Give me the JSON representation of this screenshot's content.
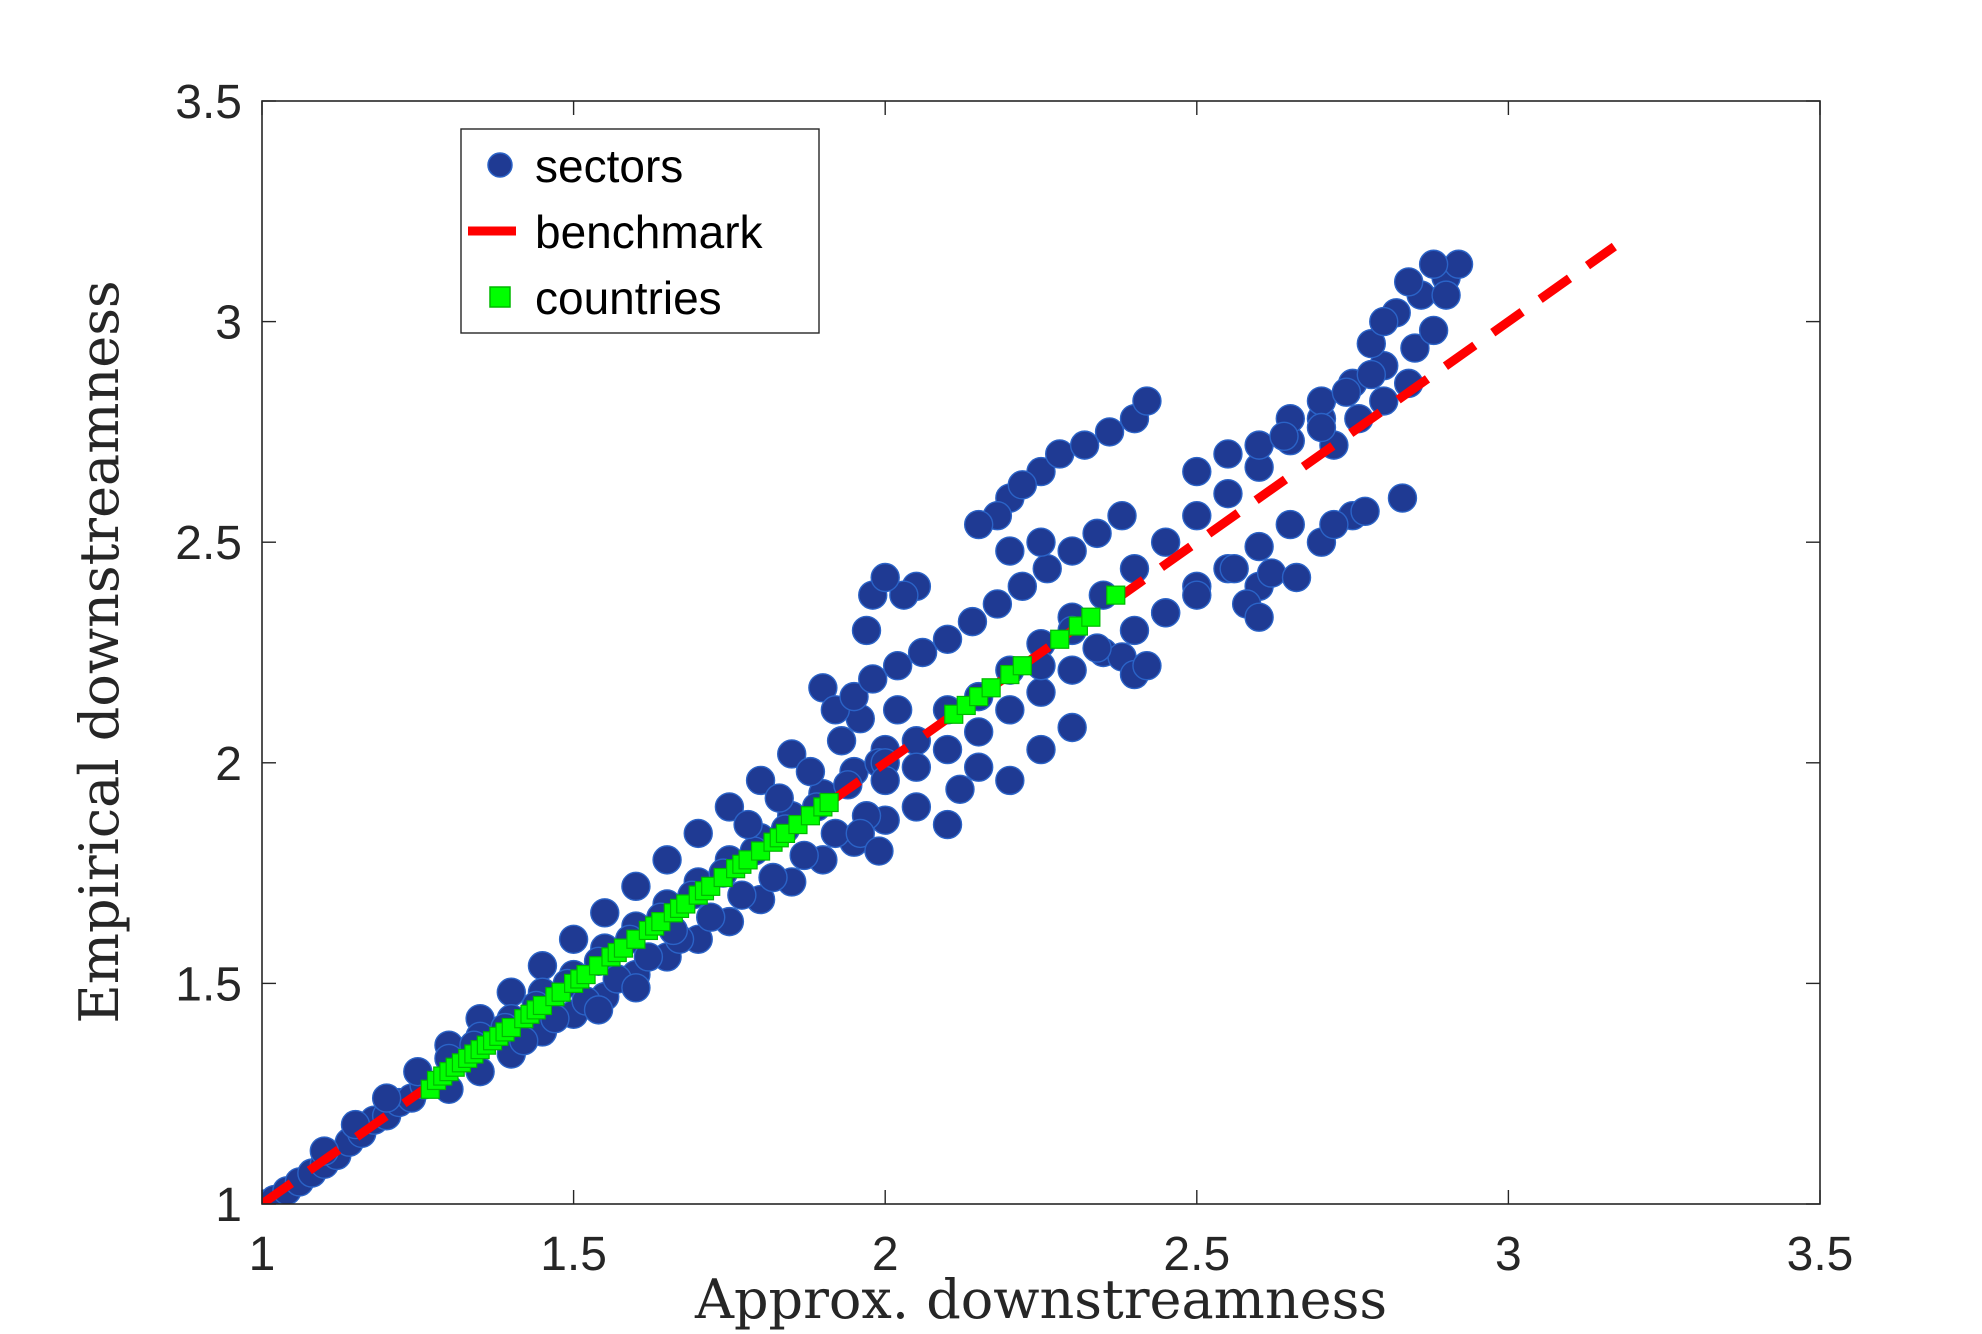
{
  "chart_data": {
    "type": "scatter",
    "title": "",
    "xlabel": "Approx. downstreamness",
    "ylabel": "Empirical downstreamness",
    "xlim": [
      1,
      3.5
    ],
    "ylim": [
      1,
      3.5
    ],
    "xticks": [
      1,
      1.5,
      2,
      2.5,
      3,
      3.5
    ],
    "yticks": [
      1,
      1.5,
      2,
      2.5,
      3,
      3.5
    ],
    "xtick_labels": [
      "1",
      "1.5",
      "2",
      "2.5",
      "3",
      "3.5"
    ],
    "ytick_labels": [
      "1",
      "1.5",
      "2",
      "2.5",
      "3",
      "3.5"
    ],
    "grid": false,
    "legend_position": "top-left",
    "series": [
      {
        "name": "sectors",
        "kind": "scatter",
        "marker": "circle",
        "color": "#1f3a93",
        "edge_color": "#2b63c7",
        "points": [
          [
            1.0,
            1.0
          ],
          [
            1.02,
            1.01
          ],
          [
            1.04,
            1.03
          ],
          [
            1.06,
            1.05
          ],
          [
            1.08,
            1.07
          ],
          [
            1.1,
            1.09
          ],
          [
            1.12,
            1.11
          ],
          [
            1.14,
            1.14
          ],
          [
            1.16,
            1.16
          ],
          [
            1.18,
            1.19
          ],
          [
            1.2,
            1.2
          ],
          [
            1.22,
            1.23
          ],
          [
            1.24,
            1.24
          ],
          [
            1.26,
            1.27
          ],
          [
            1.1,
            1.12
          ],
          [
            1.15,
            1.18
          ],
          [
            1.2,
            1.24
          ],
          [
            1.25,
            1.3
          ],
          [
            1.3,
            1.36
          ],
          [
            1.35,
            1.42
          ],
          [
            1.4,
            1.48
          ],
          [
            1.45,
            1.54
          ],
          [
            1.5,
            1.6
          ],
          [
            1.55,
            1.66
          ],
          [
            1.6,
            1.72
          ],
          [
            1.65,
            1.78
          ],
          [
            1.7,
            1.84
          ],
          [
            1.75,
            1.9
          ],
          [
            1.8,
            1.96
          ],
          [
            1.85,
            2.02
          ],
          [
            1.3,
            1.26
          ],
          [
            1.35,
            1.3
          ],
          [
            1.4,
            1.34
          ],
          [
            1.45,
            1.39
          ],
          [
            1.5,
            1.43
          ],
          [
            1.55,
            1.47
          ],
          [
            1.6,
            1.52
          ],
          [
            1.65,
            1.56
          ],
          [
            1.7,
            1.6
          ],
          [
            1.75,
            1.64
          ],
          [
            1.8,
            1.69
          ],
          [
            1.85,
            1.73
          ],
          [
            1.9,
            1.78
          ],
          [
            1.95,
            1.82
          ],
          [
            2.0,
            1.87
          ],
          [
            1.3,
            1.33
          ],
          [
            1.35,
            1.38
          ],
          [
            1.4,
            1.42
          ],
          [
            1.45,
            1.48
          ],
          [
            1.5,
            1.52
          ],
          [
            1.55,
            1.58
          ],
          [
            1.6,
            1.63
          ],
          [
            1.65,
            1.68
          ],
          [
            1.7,
            1.73
          ],
          [
            1.75,
            1.78
          ],
          [
            1.8,
            1.83
          ],
          [
            1.85,
            1.88
          ],
          [
            1.9,
            1.93
          ],
          [
            1.95,
            1.98
          ],
          [
            2.0,
            2.03
          ],
          [
            1.34,
            1.36
          ],
          [
            1.39,
            1.4
          ],
          [
            1.44,
            1.45
          ],
          [
            1.49,
            1.5
          ],
          [
            1.54,
            1.55
          ],
          [
            1.59,
            1.6
          ],
          [
            1.64,
            1.65
          ],
          [
            1.69,
            1.7
          ],
          [
            1.74,
            1.75
          ],
          [
            1.79,
            1.8
          ],
          [
            1.84,
            1.85
          ],
          [
            1.89,
            1.9
          ],
          [
            1.94,
            1.95
          ],
          [
            1.99,
            2.0
          ],
          [
            1.42,
            1.37
          ],
          [
            1.47,
            1.42
          ],
          [
            1.52,
            1.46
          ],
          [
            1.57,
            1.51
          ],
          [
            1.62,
            1.56
          ],
          [
            1.67,
            1.6
          ],
          [
            1.72,
            1.65
          ],
          [
            1.77,
            1.7
          ],
          [
            1.82,
            1.74
          ],
          [
            1.87,
            1.79
          ],
          [
            1.92,
            1.84
          ],
          [
            1.97,
            1.88
          ],
          [
            1.6,
            1.49
          ],
          [
            1.54,
            1.44
          ],
          [
            1.66,
            1.62
          ],
          [
            1.78,
            1.86
          ],
          [
            1.83,
            1.92
          ],
          [
            1.88,
            1.98
          ],
          [
            1.93,
            2.05
          ],
          [
            1.96,
            2.1
          ],
          [
            2.02,
            2.12
          ],
          [
            1.9,
            2.17
          ],
          [
            1.92,
            2.12
          ],
          [
            1.95,
            2.15
          ],
          [
            1.98,
            2.19
          ],
          [
            2.02,
            2.22
          ],
          [
            2.06,
            2.25
          ],
          [
            2.1,
            2.28
          ],
          [
            2.14,
            2.32
          ],
          [
            2.18,
            2.36
          ],
          [
            2.22,
            2.4
          ],
          [
            2.26,
            2.44
          ],
          [
            2.3,
            2.48
          ],
          [
            2.34,
            2.52
          ],
          [
            2.38,
            2.56
          ],
          [
            2.0,
            2.0
          ],
          [
            2.05,
            2.05
          ],
          [
            2.1,
            2.12
          ],
          [
            2.15,
            2.15
          ],
          [
            2.2,
            2.21
          ],
          [
            2.25,
            2.27
          ],
          [
            2.3,
            2.33
          ],
          [
            2.35,
            2.38
          ],
          [
            2.4,
            2.44
          ],
          [
            2.45,
            2.5
          ],
          [
            2.5,
            2.56
          ],
          [
            2.55,
            2.61
          ],
          [
            2.6,
            2.67
          ],
          [
            2.65,
            2.73
          ],
          [
            2.7,
            2.78
          ],
          [
            2.0,
            1.96
          ],
          [
            2.05,
            1.99
          ],
          [
            2.1,
            2.03
          ],
          [
            2.15,
            2.07
          ],
          [
            2.2,
            2.12
          ],
          [
            2.25,
            2.16
          ],
          [
            2.3,
            2.21
          ],
          [
            2.35,
            2.25
          ],
          [
            2.4,
            2.3
          ],
          [
            2.45,
            2.34
          ],
          [
            2.5,
            2.4
          ],
          [
            2.55,
            2.44
          ],
          [
            2.6,
            2.49
          ],
          [
            2.65,
            2.54
          ],
          [
            2.05,
            1.9
          ],
          [
            2.1,
            1.86
          ],
          [
            2.15,
            1.99
          ],
          [
            2.2,
            1.96
          ],
          [
            2.25,
            2.03
          ],
          [
            2.3,
            2.08
          ],
          [
            1.96,
            1.84
          ],
          [
            1.99,
            1.8
          ],
          [
            2.12,
            1.94
          ],
          [
            2.5,
            2.66
          ],
          [
            2.55,
            2.7
          ],
          [
            2.6,
            2.72
          ],
          [
            2.65,
            2.78
          ],
          [
            2.7,
            2.82
          ],
          [
            2.75,
            2.86
          ],
          [
            2.8,
            2.9
          ],
          [
            2.85,
            2.94
          ],
          [
            2.88,
            2.98
          ],
          [
            2.78,
            2.95
          ],
          [
            2.82,
            3.02
          ],
          [
            2.86,
            3.06
          ],
          [
            2.9,
            3.1
          ],
          [
            2.92,
            3.13
          ],
          [
            2.88,
            3.13
          ],
          [
            2.84,
            3.09
          ],
          [
            2.9,
            3.06
          ],
          [
            2.8,
            3.0
          ],
          [
            2.72,
            2.72
          ],
          [
            2.76,
            2.78
          ],
          [
            2.8,
            2.82
          ],
          [
            2.84,
            2.86
          ],
          [
            2.74,
            2.84
          ],
          [
            2.78,
            2.88
          ],
          [
            2.7,
            2.76
          ],
          [
            2.64,
            2.74
          ],
          [
            2.2,
            2.6
          ],
          [
            2.25,
            2.66
          ],
          [
            2.28,
            2.7
          ],
          [
            2.32,
            2.72
          ],
          [
            2.36,
            2.75
          ],
          [
            2.4,
            2.78
          ],
          [
            2.42,
            2.82
          ],
          [
            2.18,
            2.56
          ],
          [
            2.22,
            2.63
          ],
          [
            2.05,
            2.4
          ],
          [
            2.03,
            2.38
          ],
          [
            1.98,
            2.38
          ],
          [
            2.0,
            2.42
          ],
          [
            1.97,
            2.3
          ],
          [
            2.15,
            2.54
          ],
          [
            2.2,
            2.48
          ],
          [
            2.25,
            2.5
          ],
          [
            2.6,
            2.4
          ],
          [
            2.62,
            2.43
          ],
          [
            2.66,
            2.42
          ],
          [
            2.56,
            2.44
          ],
          [
            2.58,
            2.36
          ],
          [
            2.6,
            2.33
          ],
          [
            2.7,
            2.5
          ],
          [
            2.75,
            2.56
          ],
          [
            2.77,
            2.57
          ],
          [
            2.83,
            2.6
          ],
          [
            2.72,
            2.54
          ],
          [
            2.38,
            2.24
          ],
          [
            2.4,
            2.2
          ],
          [
            2.42,
            2.22
          ],
          [
            2.34,
            2.26
          ],
          [
            2.3,
            2.3
          ],
          [
            2.25,
            2.22
          ],
          [
            2.45,
            2.34
          ],
          [
            2.5,
            2.38
          ]
        ]
      },
      {
        "name": "benchmark",
        "kind": "line",
        "style": "dashed",
        "color": "#ff0000",
        "x": [
          1,
          3.17
        ],
        "y": [
          1,
          3.17
        ]
      },
      {
        "name": "countries",
        "kind": "scatter",
        "marker": "square",
        "color": "#00ff00",
        "edge_color": "#00b800",
        "points": [
          [
            1.27,
            1.26
          ],
          [
            1.28,
            1.28
          ],
          [
            1.29,
            1.29
          ],
          [
            1.3,
            1.3
          ],
          [
            1.31,
            1.31
          ],
          [
            1.32,
            1.32
          ],
          [
            1.33,
            1.33
          ],
          [
            1.34,
            1.34
          ],
          [
            1.35,
            1.35
          ],
          [
            1.36,
            1.36
          ],
          [
            1.37,
            1.37
          ],
          [
            1.38,
            1.38
          ],
          [
            1.39,
            1.39
          ],
          [
            1.4,
            1.4
          ],
          [
            1.42,
            1.42
          ],
          [
            1.43,
            1.43
          ],
          [
            1.44,
            1.44
          ],
          [
            1.45,
            1.45
          ],
          [
            1.47,
            1.47
          ],
          [
            1.48,
            1.48
          ],
          [
            1.5,
            1.5
          ],
          [
            1.51,
            1.51
          ],
          [
            1.52,
            1.52
          ],
          [
            1.54,
            1.54
          ],
          [
            1.56,
            1.56
          ],
          [
            1.57,
            1.57
          ],
          [
            1.58,
            1.58
          ],
          [
            1.6,
            1.6
          ],
          [
            1.62,
            1.62
          ],
          [
            1.63,
            1.63
          ],
          [
            1.64,
            1.64
          ],
          [
            1.66,
            1.66
          ],
          [
            1.67,
            1.67
          ],
          [
            1.68,
            1.68
          ],
          [
            1.7,
            1.7
          ],
          [
            1.71,
            1.71
          ],
          [
            1.72,
            1.72
          ],
          [
            1.74,
            1.74
          ],
          [
            1.76,
            1.76
          ],
          [
            1.77,
            1.77
          ],
          [
            1.78,
            1.78
          ],
          [
            1.8,
            1.8
          ],
          [
            1.82,
            1.82
          ],
          [
            1.83,
            1.83
          ],
          [
            1.84,
            1.84
          ],
          [
            1.86,
            1.86
          ],
          [
            1.88,
            1.88
          ],
          [
            1.9,
            1.9
          ],
          [
            1.91,
            1.91
          ],
          [
            2.11,
            2.11
          ],
          [
            2.13,
            2.13
          ],
          [
            2.15,
            2.15
          ],
          [
            2.17,
            2.17
          ],
          [
            2.2,
            2.2
          ],
          [
            2.22,
            2.22
          ],
          [
            2.28,
            2.28
          ],
          [
            2.31,
            2.31
          ],
          [
            2.33,
            2.33
          ],
          [
            2.37,
            2.38
          ]
        ]
      }
    ]
  }
}
